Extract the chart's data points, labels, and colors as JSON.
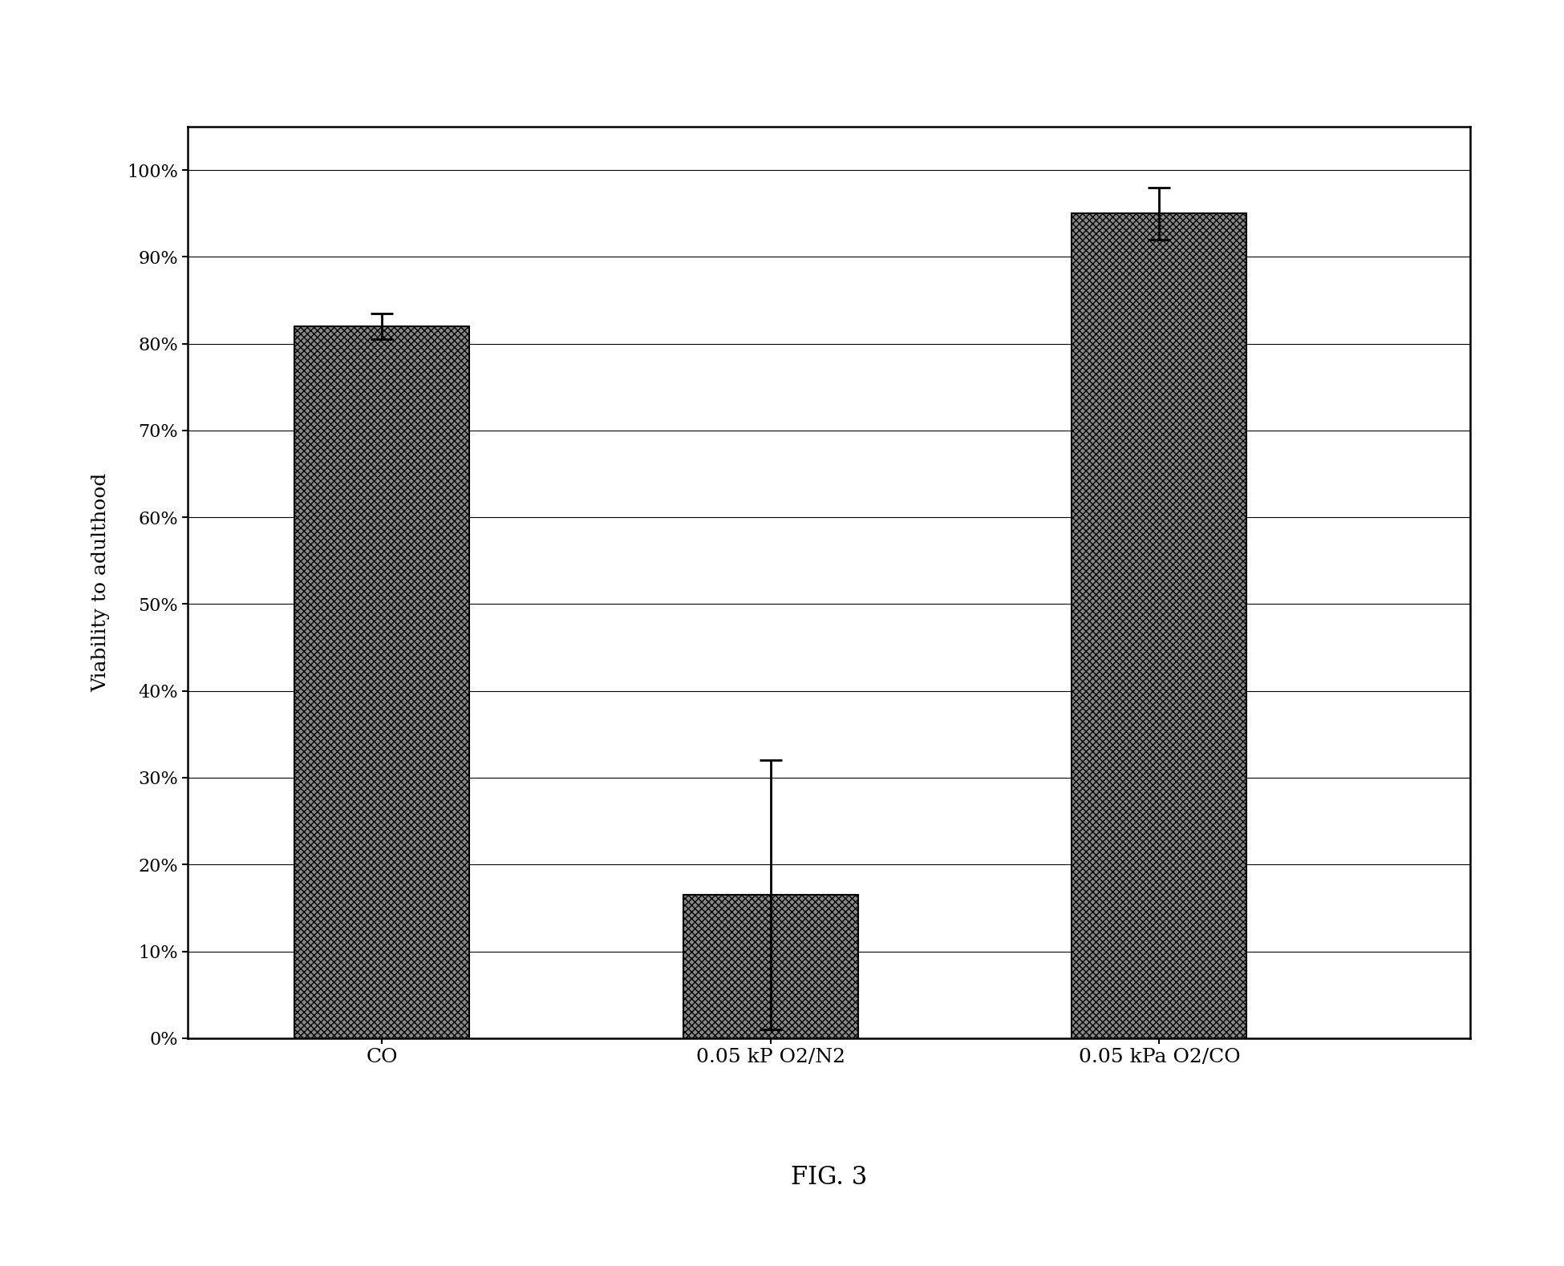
{
  "categories": [
    "CO",
    "0.05 kP O2/N2",
    "0.05 kPa O2/CO"
  ],
  "values": [
    0.82,
    0.165,
    0.95
  ],
  "errors": [
    0.015,
    0.155,
    0.03
  ],
  "bar_color": "#888888",
  "bar_hatch": "xxxx",
  "ylabel": "Viability to adulthood",
  "yticks": [
    0.0,
    0.1,
    0.2,
    0.3,
    0.4,
    0.5,
    0.6,
    0.7,
    0.8,
    0.9,
    1.0
  ],
  "ytick_labels": [
    "0%",
    "10%",
    "20%",
    "30%",
    "40%",
    "50%",
    "60%",
    "70%",
    "80%",
    "90%",
    "100%"
  ],
  "ylim": [
    0,
    1.05
  ],
  "figure_caption": "FIG. 3",
  "background_color": "#ffffff",
  "grid_color": "#000000",
  "bar_edge_color": "#000000",
  "bar_width": 0.45,
  "axis_fontsize": 18,
  "tick_fontsize": 16,
  "caption_fontsize": 22,
  "xlabel_fontsize": 18
}
